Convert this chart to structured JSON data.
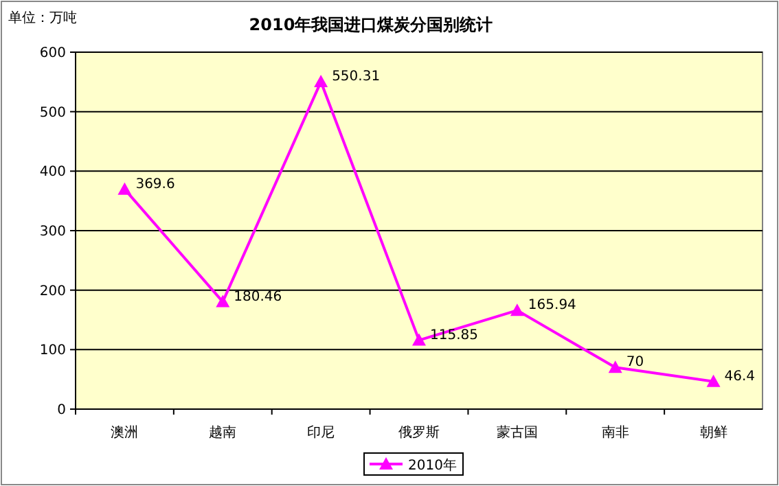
{
  "chart_data": {
    "type": "line",
    "title": "2010年我国进口煤炭分国别统计",
    "ylabel": "单位：万吨",
    "categories": [
      "澳洲",
      "越南",
      "印尼",
      "俄罗斯",
      "蒙古国",
      "南非",
      "朝鲜"
    ],
    "series": [
      {
        "name": "2010年",
        "color": "#ff00ff",
        "values": [
          369.6,
          180.46,
          550.31,
          115.85,
          165.94,
          70,
          46.4
        ]
      }
    ],
    "ylim": [
      0,
      600
    ],
    "yticks": [
      0,
      100,
      200,
      300,
      400,
      500,
      600
    ],
    "grid": "y",
    "legend": "bottom",
    "marker": "triangle",
    "line_style": "solid",
    "data_labels": true
  }
}
